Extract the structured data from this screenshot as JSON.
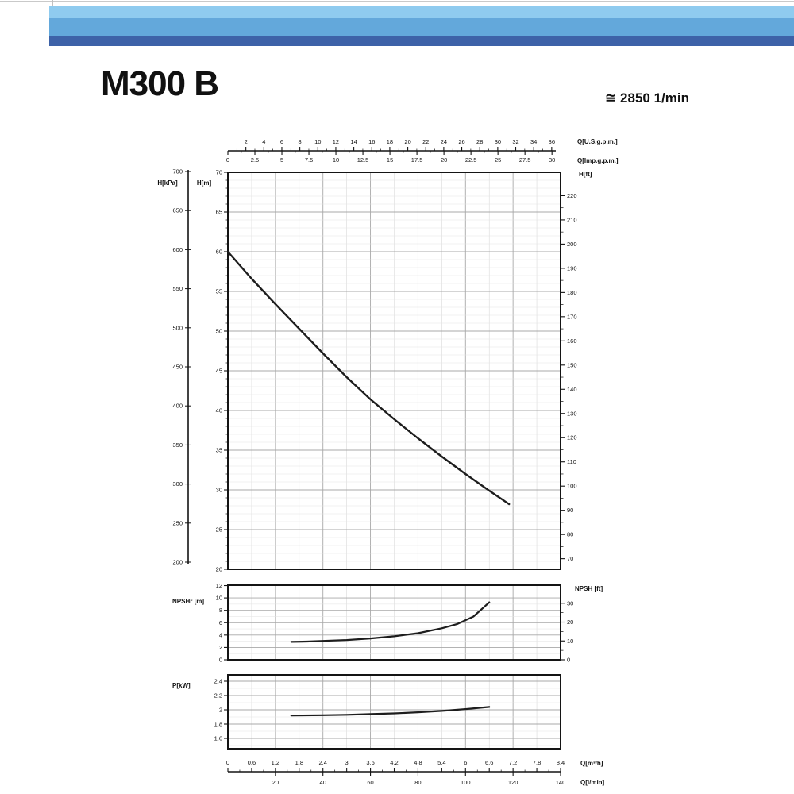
{
  "header": {
    "title": "M300 B",
    "speed": "≅ 2850 1/min"
  },
  "banner": {
    "colors": [
      "#8FCBEF",
      "#63A8DB",
      "#3D62A8"
    ]
  },
  "x_axes": {
    "xlim_m3h": [
      0,
      8.4
    ],
    "top_us_gpm": {
      "label": "Q[U.S.g.p.m.]",
      "ticks": [
        "2",
        "4",
        "6",
        "8",
        "10",
        "12",
        "14",
        "16",
        "18",
        "20",
        "22",
        "24",
        "26",
        "28",
        "30",
        "32",
        "34",
        "36"
      ],
      "m3h_per_unit": 0.22712
    },
    "top_imp_gpm": {
      "label": "Q[Imp.g.p.m.]",
      "ticks": [
        "0",
        "2.5",
        "5",
        "7.5",
        "10",
        "12.5",
        "15",
        "17.5",
        "20",
        "22.5",
        "25",
        "27.5",
        "30"
      ],
      "m3h_per_unit": 0.27276
    },
    "bottom_m3h": {
      "label": "Q[m³/h]",
      "ticks": [
        "0",
        "0.6",
        "1.2",
        "1.8",
        "2.4",
        "3",
        "3.6",
        "4.2",
        "4.8",
        "5.4",
        "6",
        "6.6",
        "7.2",
        "7.8",
        "8.4"
      ],
      "m3h_per_unit": 1
    },
    "bottom_lmin": {
      "label": "Q[l/min]",
      "ticks": [
        "20",
        "40",
        "60",
        "80",
        "100",
        "120",
        "140"
      ],
      "m3h_per_unit": 0.06
    }
  },
  "chart_data": [
    {
      "id": "head",
      "type": "line",
      "title": "H-Q performance curve",
      "ylabel_left_primary": "H[kPa]",
      "ylabel_left_secondary": "H[m]",
      "ylabel_right": "H[ft]",
      "ylim_m": [
        20,
        70
      ],
      "y_m_ticks": [
        "70",
        "65",
        "60",
        "55",
        "50",
        "45",
        "40",
        "35",
        "30",
        "25",
        "20"
      ],
      "y_kpa_ticks": [
        "700",
        "650",
        "600",
        "550",
        "500",
        "450",
        "400",
        "350",
        "300",
        "250",
        "200"
      ],
      "y_ft_ticks": [
        "220",
        "210",
        "200",
        "190",
        "180",
        "170",
        "160",
        "150",
        "140",
        "130",
        "120",
        "110",
        "100",
        "90",
        "80",
        "70"
      ],
      "grid": "on",
      "series": [
        {
          "name": "head-curve",
          "points_q_m3h_vs_H_m": [
            [
              0,
              60
            ],
            [
              0.6,
              56.6
            ],
            [
              1.2,
              53.4
            ],
            [
              1.8,
              50.3
            ],
            [
              2.4,
              47.2
            ],
            [
              3.0,
              44.2
            ],
            [
              3.6,
              41.4
            ],
            [
              4.2,
              38.9
            ],
            [
              4.8,
              36.5
            ],
            [
              5.4,
              34.2
            ],
            [
              6.0,
              32.0
            ],
            [
              6.6,
              29.9
            ],
            [
              7.1,
              28.2
            ]
          ]
        }
      ]
    },
    {
      "id": "npsh",
      "type": "line",
      "title": "NPSH curve",
      "ylabel_left": "NPSHr [m]",
      "ylabel_right": "NPSH [ft]",
      "ylim_m": [
        0,
        12
      ],
      "y_m_ticks": [
        "12",
        "10",
        "8",
        "6",
        "4",
        "2",
        "0"
      ],
      "y_ft_ticks": [
        "30",
        "20",
        "10",
        "0"
      ],
      "grid": "on",
      "series": [
        {
          "name": "npsh-curve",
          "points_q_m3h_vs_NPSH_m": [
            [
              1.6,
              2.9
            ],
            [
              2.0,
              2.95
            ],
            [
              2.4,
              3.05
            ],
            [
              3.0,
              3.2
            ],
            [
              3.6,
              3.45
            ],
            [
              4.2,
              3.8
            ],
            [
              4.8,
              4.3
            ],
            [
              5.4,
              5.1
            ],
            [
              5.8,
              5.8
            ],
            [
              6.2,
              7.0
            ],
            [
              6.6,
              9.3
            ]
          ]
        }
      ]
    },
    {
      "id": "power",
      "type": "line",
      "title": "Power curve",
      "ylabel_left": "P[kW]",
      "ylim_kw": [
        1.45,
        2.5
      ],
      "y_kw_ticks": [
        "2.4",
        "2.2",
        "2",
        "1.8",
        "1.6"
      ],
      "grid": "on",
      "series": [
        {
          "name": "power-curve",
          "points_q_m3h_vs_P_kw": [
            [
              1.6,
              1.92
            ],
            [
              2.4,
              1.925
            ],
            [
              3.0,
              1.93
            ],
            [
              3.6,
              1.94
            ],
            [
              4.2,
              1.95
            ],
            [
              4.8,
              1.965
            ],
            [
              5.4,
              1.985
            ],
            [
              6.0,
              2.01
            ],
            [
              6.6,
              2.04
            ]
          ]
        }
      ]
    }
  ]
}
